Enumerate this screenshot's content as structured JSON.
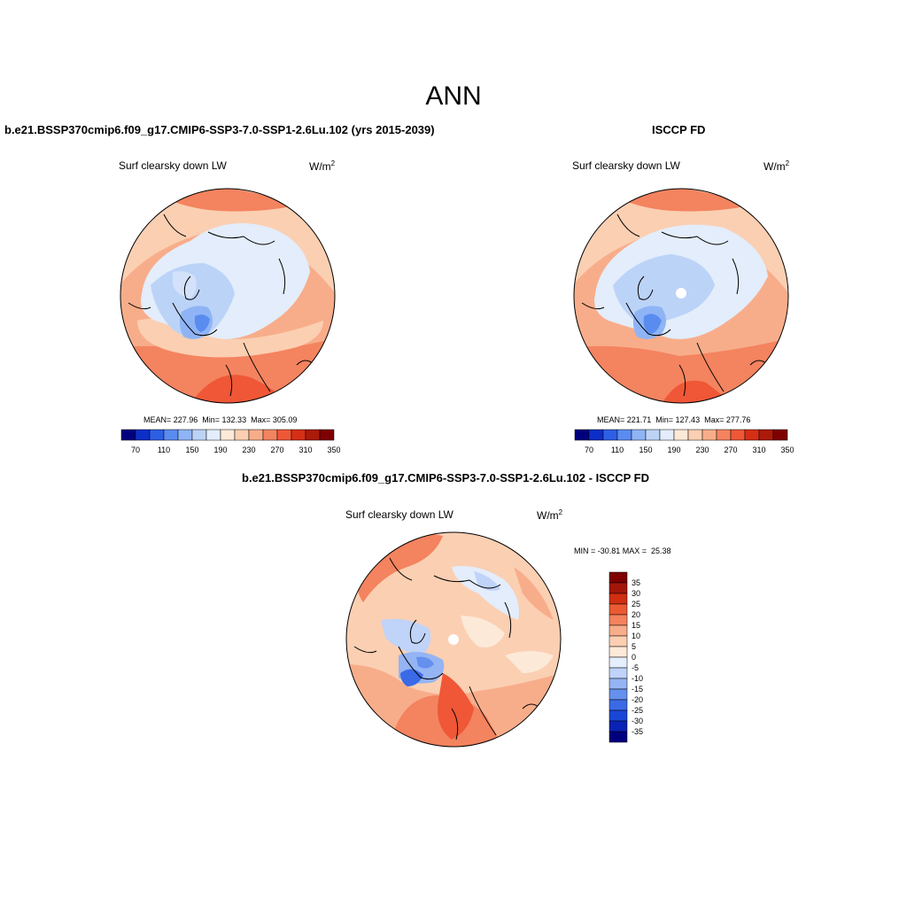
{
  "main_title": "ANN",
  "panels": [
    {
      "title": "b.e21.BSSP370cmip6.f09_g17.CMIP6-SSP3-7.0-SSP1-2.6Lu.102 (yrs 2015-2039)",
      "variable": "Surf clearsky down LW",
      "units": "W/m",
      "units_sup": "2",
      "stats": "MEAN= 227.96  Min= 132.33  Max= 305.09",
      "colorbar_labels": [
        "70",
        "110",
        "150",
        "190",
        "230",
        "270",
        "310",
        "350"
      ]
    },
    {
      "title": "ISCCP FD",
      "variable": "Surf clearsky down LW",
      "units": "W/m",
      "units_sup": "2",
      "stats": "MEAN= 221.71  Min= 127.43  Max= 277.76",
      "colorbar_labels": [
        "70",
        "110",
        "150",
        "190",
        "230",
        "270",
        "310",
        "350"
      ]
    },
    {
      "title": "b.e21.BSSP370cmip6.f09_g17.CMIP6-SSP3-7.0-SSP1-2.6Lu.102 - ISCCP FD",
      "variable": "Surf clearsky down LW",
      "units": "W/m",
      "units_sup": "2",
      "stats": "MIN = -30.81 MAX =  25.38",
      "colorbar_labels": [
        "35",
        "30",
        "25",
        "20",
        "15",
        "10",
        "5",
        "0",
        "-5",
        "-10",
        "-15",
        "-20",
        "-25",
        "-30",
        "-35"
      ]
    }
  ],
  "colors": {
    "abs_scale": [
      "#00007f",
      "#0c2ec8",
      "#2d5fe6",
      "#5a8cf0",
      "#8fb4f5",
      "#bcd3f8",
      "#e3edfb",
      "#fde9d8",
      "#fbcfb2",
      "#f8ad8a",
      "#f4835f",
      "#ef5736",
      "#d62f16",
      "#ac1a0a",
      "#7f0000"
    ],
    "diff_scale": [
      "#00007f",
      "#0a22b5",
      "#1a46d6",
      "#3b6ae6",
      "#6690ee",
      "#94b4f4",
      "#c0d3f8",
      "#e5eefc",
      "#fde9d8",
      "#fbcfb2",
      "#f8ad8a",
      "#f4835f",
      "#ec5a33",
      "#d12e12",
      "#a3170a",
      "#7f0000"
    ]
  }
}
